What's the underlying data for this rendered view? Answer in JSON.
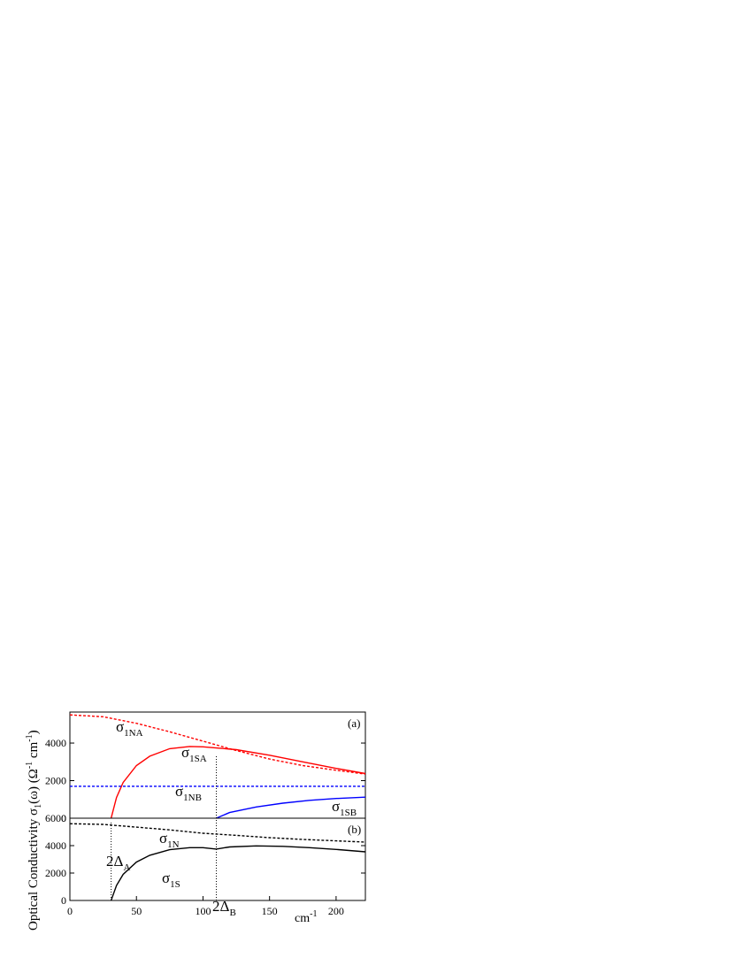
{
  "chart_data": [
    {
      "type": "line",
      "panel_label": "(a)",
      "xlim": [
        0,
        222
      ],
      "ylim": [
        0,
        5650
      ],
      "yticks": [
        0,
        2000,
        4000
      ],
      "series": [
        {
          "color": "#ff0000",
          "style": "dashed",
          "x": [
            0,
            25,
            50,
            75,
            100,
            125,
            150,
            175,
            200,
            222
          ],
          "values": [
            5500,
            5400,
            5050,
            4600,
            4100,
            3600,
            3150,
            2800,
            2550,
            2350
          ]
        },
        {
          "color": "#ff0000",
          "style": "solid",
          "x": [
            31,
            35,
            40,
            50,
            60,
            75,
            90,
            100,
            125,
            150,
            175,
            200,
            222
          ],
          "values": [
            0,
            1100,
            1900,
            2800,
            3300,
            3700,
            3820,
            3800,
            3650,
            3350,
            3000,
            2650,
            2380
          ]
        },
        {
          "color": "#0000ff",
          "style": "dashed",
          "x": [
            0,
            222
          ],
          "values": [
            1700,
            1700
          ]
        },
        {
          "color": "#0000ff",
          "style": "solid",
          "x": [
            110,
            120,
            140,
            160,
            180,
            200,
            222
          ],
          "values": [
            0,
            300,
            600,
            800,
            950,
            1050,
            1120
          ]
        }
      ],
      "annotations": [
        [
          "σ",
          "1NA"
        ],
        [
          "σ",
          "1SA"
        ],
        [
          "σ",
          "1NB"
        ],
        [
          "σ",
          "1SB"
        ]
      ]
    },
    {
      "type": "line",
      "panel_label": "(b)",
      "xlim": [
        0,
        222
      ],
      "ylim": [
        0,
        6000
      ],
      "yticks": [
        0,
        2000,
        4000,
        6000
      ],
      "xticks": [
        0,
        50,
        100,
        150,
        200
      ],
      "xlabel": [
        "cm",
        "-1"
      ],
      "ylabel": [
        "Optical Conductivity  σ",
        "1",
        "(ω)  (Ω",
        "-1",
        " cm",
        "-1",
        ")"
      ],
      "series": [
        {
          "color": "#000000",
          "style": "dashed",
          "x": [
            0,
            25,
            50,
            75,
            100,
            125,
            150,
            175,
            200,
            222
          ],
          "values": [
            5600,
            5550,
            5350,
            5150,
            4900,
            4750,
            4580,
            4450,
            4350,
            4260
          ]
        },
        {
          "color": "#000000",
          "style": "solid",
          "x": [
            31,
            35,
            40,
            50,
            60,
            75,
            90,
            100,
            110,
            120,
            140,
            160,
            180,
            200,
            222
          ],
          "values": [
            0,
            1100,
            1900,
            2800,
            3300,
            3700,
            3850,
            3850,
            3750,
            3900,
            3980,
            3950,
            3850,
            3720,
            3550
          ]
        }
      ],
      "vlines": [
        31,
        110
      ],
      "annotations": [
        [
          "σ",
          "1N"
        ],
        [
          "σ",
          "1S"
        ],
        [
          "2Δ",
          "A"
        ],
        [
          "2Δ",
          "B"
        ]
      ]
    }
  ]
}
